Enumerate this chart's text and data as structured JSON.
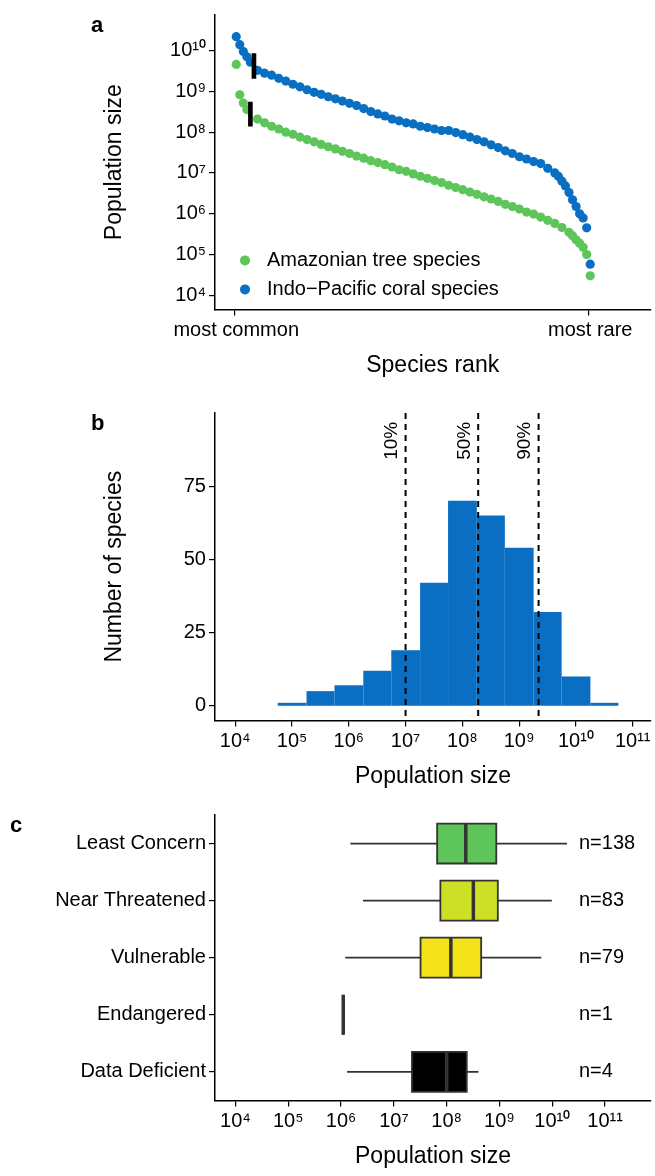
{
  "chart_data": [
    {
      "type": "scatter",
      "title": "a",
      "xlabel": "Species rank",
      "ylabel": "Population size",
      "log": "y",
      "marker": "circle",
      "legend": "bottom left",
      "categories": [
        null,
        null,
        null,
        null,
        null,
        null,
        "most common",
        null,
        null,
        null,
        null,
        null,
        null,
        null,
        null,
        null,
        null,
        null,
        null,
        null,
        null,
        null,
        null,
        null,
        null,
        null,
        null,
        null,
        null,
        null,
        null,
        null,
        null,
        null,
        null,
        null,
        null,
        null,
        null,
        null,
        null,
        null,
        null,
        null,
        null,
        null,
        null,
        null,
        null,
        null,
        null,
        null,
        null,
        null,
        null,
        null,
        null,
        null,
        null,
        null,
        null,
        null,
        null,
        null,
        null,
        null,
        null,
        null,
        null,
        null,
        null,
        null,
        null,
        null,
        null,
        null,
        null,
        null,
        null,
        null,
        null,
        null,
        null,
        null,
        null,
        null,
        null,
        null,
        null,
        null,
        null,
        null,
        null,
        null,
        null,
        null,
        null,
        null,
        null,
        null,
        null,
        null,
        null,
        null,
        null,
        null,
        "most rare",
        null,
        null,
        null,
        null,
        null,
        null,
        null,
        null,
        null,
        null,
        null,
        null,
        null,
        null,
        null,
        null,
        null
      ],
      "ylim": [
        4500,
        75000000000.0
      ],
      "yticks": [
        {
          "value": 10000.0,
          "label": "10⁴"
        },
        {
          "value": 100000.0,
          "label": "10⁵"
        },
        {
          "value": 1000000.0,
          "label": "10⁶"
        },
        {
          "value": 10000000.0,
          "label": "10⁷"
        },
        {
          "value": 100000000.0,
          "label": "10⁸"
        },
        {
          "value": 1000000000.0,
          "label": "10⁹"
        },
        {
          "value": 10000000000.0,
          "label": "10¹⁰"
        }
      ],
      "series": [
        {
          "name": "Amazonian tree species",
          "color": "#5ec55a",
          "values": [
            null,
            null,
            null,
            null,
            null,
            null,
            4600000000.0,
            830000000.0,
            520000000.0,
            360000000.0,
            null,
            null,
            210000000.0,
            null,
            170000000.0,
            null,
            140000000.0,
            null,
            120000000.0,
            null,
            100000000.0,
            null,
            89000000.0,
            null,
            76000000.0,
            null,
            66000000.0,
            null,
            58000000.0,
            null,
            50000000.0,
            null,
            44000000.0,
            null,
            39000000.0,
            null,
            34000000.0,
            null,
            30000000.0,
            null,
            26000000.0,
            null,
            23000000.0,
            null,
            20000000.0,
            null,
            18000000.0,
            null,
            16000000.0,
            null,
            14000000.0,
            null,
            12000000.0,
            null,
            11000000.0,
            null,
            9500000.0,
            null,
            8300000.0,
            null,
            7400000.0,
            null,
            6500000.0,
            null,
            5800000.0,
            null,
            5000000.0,
            null,
            4400000.0,
            null,
            3900000.0,
            null,
            3400000.0,
            null,
            3000000.0,
            null,
            2600000.0,
            null,
            2300000.0,
            null,
            2000000.0,
            null,
            1700000.0,
            null,
            1500000.0,
            null,
            1300000.0,
            null,
            1100000.0,
            null,
            980000.0,
            null,
            830000.0,
            null,
            690000.0,
            null,
            580000.0,
            null,
            460000.0,
            null,
            350000.0,
            290000.0,
            230000.0,
            190000.0,
            150000.0,
            100000.0,
            30000.0,
            null,
            null,
            null,
            null,
            null,
            null,
            null,
            null,
            null,
            null,
            null,
            null,
            null,
            null,
            null,
            null,
            null
          ]
        },
        {
          "name": "Indo−Pacific coral species",
          "color": "#0a6fc2",
          "values": [
            null,
            null,
            null,
            null,
            null,
            null,
            22000000000.0,
            14000000000.0,
            9500000000.0,
            7100000000.0,
            5200000000.0,
            null,
            3300000000.0,
            null,
            2800000000.0,
            null,
            2500000000.0,
            null,
            2100000000.0,
            null,
            1800000000.0,
            null,
            1500000000.0,
            null,
            1300000000.0,
            null,
            1100000000.0,
            null,
            950000000.0,
            null,
            850000000.0,
            null,
            740000000.0,
            null,
            660000000.0,
            null,
            580000000.0,
            null,
            510000000.0,
            null,
            450000000.0,
            null,
            380000000.0,
            null,
            320000000.0,
            null,
            280000000.0,
            null,
            250000000.0,
            null,
            210000000.0,
            null,
            190000000.0,
            null,
            170000000.0,
            null,
            160000000.0,
            null,
            140000000.0,
            null,
            130000000.0,
            null,
            120000000.0,
            null,
            110000000.0,
            null,
            110000000.0,
            null,
            98000000.0,
            null,
            87000000.0,
            null,
            76000000.0,
            null,
            66000000.0,
            null,
            58000000.0,
            null,
            49000000.0,
            null,
            42000000.0,
            null,
            35000000.0,
            null,
            30000000.0,
            null,
            25000000.0,
            null,
            22000000.0,
            null,
            19000000.0,
            null,
            17000000.0,
            null,
            13000000.0,
            null,
            10000000.0,
            8300000.0,
            6300000.0,
            4800000.0,
            3300000.0,
            2200000.0,
            1500000.0,
            1000000.0,
            790000.0,
            450000.0,
            58000.0,
            null,
            null,
            null,
            null,
            null,
            null,
            null,
            null,
            null,
            null,
            null,
            null,
            null,
            null,
            null,
            null,
            null
          ]
        },
        {
          "type": "bar",
          "color": "#000000",
          "values": [
            null,
            null,
            null,
            null,
            null,
            null,
            null,
            null,
            null,
            null,
            410000000.0,
            6400000000.0,
            null,
            null,
            null,
            null,
            null,
            null,
            null,
            null,
            null,
            null,
            null,
            null,
            null,
            null,
            null,
            null,
            null,
            null,
            null,
            null,
            null,
            null,
            null,
            null,
            null,
            null,
            null,
            null,
            null,
            null,
            null,
            null,
            null,
            null,
            null,
            null,
            null,
            null,
            null,
            null,
            null,
            null,
            null,
            null,
            null,
            null,
            null,
            null,
            null,
            null,
            null,
            null,
            null,
            null,
            null,
            null,
            null,
            null,
            null,
            null,
            null,
            null,
            null,
            null,
            null,
            null,
            null,
            null,
            null,
            null,
            null,
            null,
            null,
            null,
            null,
            null,
            null,
            null,
            null,
            null,
            null,
            null,
            null,
            null,
            null,
            null,
            null,
            null,
            null,
            null,
            null,
            null,
            null,
            null,
            null,
            null,
            null,
            null,
            null,
            null,
            null,
            null,
            null,
            null,
            null,
            null,
            null,
            null,
            null,
            null,
            null,
            null
          ],
          "base": [
            null,
            null,
            null,
            null,
            null,
            null,
            null,
            null,
            null,
            null,
            140000000.0,
            2100000000.0,
            null,
            null,
            null,
            null,
            null,
            null,
            null,
            null,
            null,
            null,
            null,
            null,
            null,
            null,
            null,
            null,
            null,
            null,
            null,
            null,
            null,
            null,
            null,
            null,
            null,
            null,
            null,
            null,
            null,
            null,
            null,
            null,
            null,
            null,
            null,
            null,
            null,
            null,
            null,
            null,
            null,
            null,
            null,
            null,
            null,
            null,
            null,
            null,
            null,
            null,
            null,
            null,
            null,
            null,
            null,
            null,
            null,
            null,
            null,
            null,
            null,
            null,
            null,
            null,
            null,
            null,
            null,
            null,
            null,
            null,
            null,
            null,
            null,
            null,
            null,
            null,
            null,
            null,
            null,
            null,
            null,
            null,
            null,
            null,
            null,
            null,
            null,
            null,
            null,
            null,
            null,
            null,
            null,
            null,
            null,
            null,
            null,
            null,
            null,
            null,
            null,
            null,
            null,
            null,
            null,
            null,
            null,
            null,
            null,
            null,
            null,
            null
          ]
        }
      ]
    },
    {
      "type": "histogram",
      "title": "b",
      "xlabel": "Population size",
      "ylabel": "Number of species",
      "log": "x",
      "color": "#0a6fc2",
      "bins": [
        56000.0,
        180000.0,
        560000.0,
        1800000.0,
        5600000.0,
        18000000.0,
        56000000.0,
        180000000.0,
        560000000.0,
        1800000000.0,
        5600000000.0,
        18000000000.0,
        56000000000.0
      ],
      "values": [
        1,
        5,
        7,
        12,
        19,
        42,
        70,
        65,
        54,
        32,
        10,
        1
      ],
      "xlim": [
        4400,
        210000000000.0
      ],
      "xticks": [
        {
          "value": 10000.0,
          "label": "10⁴"
        },
        {
          "value": 100000.0,
          "label": "10⁵"
        },
        {
          "value": 1000000.0,
          "label": "10⁶"
        },
        {
          "value": 10000000.0,
          "label": "10⁷"
        },
        {
          "value": 100000000.0,
          "label": "10⁸"
        },
        {
          "value": 1000000000.0,
          "label": "10⁹"
        },
        {
          "value": 10000000000.0,
          "label": "10¹⁰"
        },
        {
          "value": 100000000000.0,
          "label": "10¹¹"
        }
      ],
      "ylim": [
        -5,
        100
      ],
      "yticks": [
        0,
        25,
        50,
        75
      ],
      "ref_lines": [
        {
          "axis": "x",
          "value": 10000000.0,
          "color": "#000000",
          "line_style": "dashed"
        },
        {
          "axis": "x",
          "value": 190000000.0,
          "color": "#000000",
          "line_style": "dashed"
        },
        {
          "axis": "x",
          "value": 2200000000.0,
          "color": "#000000",
          "line_style": "dashed"
        }
      ],
      "annotations": [
        {
          "text": "10%",
          "x": 10000000.0,
          "y": 97
        },
        {
          "text": "50%",
          "x": 190000000.0,
          "y": 97
        },
        {
          "text": "90%",
          "x": 2200000000.0,
          "y": 97
        }
      ]
    },
    {
      "type": "box",
      "title": "c",
      "xlabel": "Population size",
      "log": "x",
      "orientation": "horizontal",
      "categories": [
        "Least Concern",
        "Near Threatened",
        "Vulnerable",
        "Endangered",
        "Data Deficient"
      ],
      "colors": [
        "#5ec55a",
        "#cde026",
        "#f5e31a",
        "#333333",
        "#000000"
      ],
      "boxes": [
        {
          "low": 1500000.0,
          "q1": 66000000.0,
          "median": 230000000.0,
          "q3": 870000000.0,
          "high": 19000000000.0
        },
        {
          "low": 2600000.0,
          "q1": 76000000.0,
          "median": 320000000.0,
          "q3": 930000000.0,
          "high": 9800000000.0
        },
        {
          "low": 1200000.0,
          "q1": 32000000.0,
          "median": 120000000.0,
          "q3": 450000000.0,
          "high": 6200000000.0
        },
        {
          "low": 1100000.0,
          "q1": 1100000.0,
          "median": 1100000.0,
          "q3": 1100000.0,
          "high": 1100000.0
        },
        {
          "low": 1300000.0,
          "q1": 22000000.0,
          "median": 100000000.0,
          "q3": 240000000.0,
          "high": 400000000.0
        }
      ],
      "xlim": [
        4100,
        740000000000.0
      ],
      "xticks": [
        {
          "value": 10000.0,
          "label": "10⁴"
        },
        {
          "value": 100000.0,
          "label": "10⁵"
        },
        {
          "value": 1000000.0,
          "label": "10⁶"
        },
        {
          "value": 10000000.0,
          "label": "10⁷"
        },
        {
          "value": 100000000.0,
          "label": "10⁸"
        },
        {
          "value": 1000000000.0,
          "label": "10⁹"
        },
        {
          "value": 10000000000.0,
          "label": "10¹⁰"
        },
        {
          "value": 100000000000.0,
          "label": "10¹¹"
        }
      ],
      "annotations": [
        "n=138",
        "n=83",
        "n=79",
        "n=1",
        "n=4"
      ]
    }
  ]
}
